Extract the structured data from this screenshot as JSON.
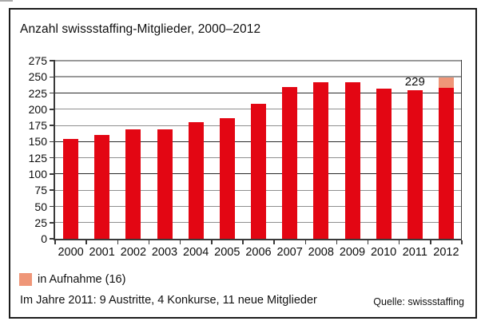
{
  "window": {
    "title": "Anzahl swissstaffing-Mitglieder, 2000–2012"
  },
  "legend": {
    "label": "in Aufnahme (16)",
    "swatch_color": "#ef9678"
  },
  "footer": {
    "note": "Im Jahre 2011: 9 Austritte, 4 Konkurse, 11 neue Mitglieder",
    "source": "Quelle: swissstaffing"
  },
  "colors": {
    "bar_red": "#e30613",
    "bar_salmon": "#ef9678",
    "grid_gray": "#8f8f8f",
    "grid_dark": "#2a2a2a",
    "axis": "#3a3a3a"
  },
  "chart_data": {
    "type": "bar",
    "title": "Anzahl swissstaffing-Mitglieder, 2000–2012",
    "categories": [
      "2000",
      "2001",
      "2002",
      "2003",
      "2004",
      "2005",
      "2006",
      "2007",
      "2008",
      "2009",
      "2010",
      "2011",
      "2012"
    ],
    "series": [
      {
        "name": "Mitglieder",
        "color": "#e30613",
        "values": [
          154,
          160,
          169,
          169,
          180,
          186,
          209,
          234,
          242,
          242,
          232,
          229,
          233
        ]
      },
      {
        "name": "in Aufnahme (16)",
        "color": "#ef9678",
        "values": [
          0,
          0,
          0,
          0,
          0,
          0,
          0,
          0,
          0,
          0,
          0,
          0,
          16
        ]
      }
    ],
    "stacked": true,
    "annotations": [
      {
        "text": "229",
        "category": "2011"
      }
    ],
    "xlabel": "",
    "ylabel": "",
    "ylim": [
      0,
      275
    ],
    "ytick_labels": [
      0,
      25,
      50,
      75,
      100,
      125,
      150,
      175,
      200,
      225,
      250,
      275
    ],
    "grid": true,
    "legend_position": "bottom-left"
  }
}
